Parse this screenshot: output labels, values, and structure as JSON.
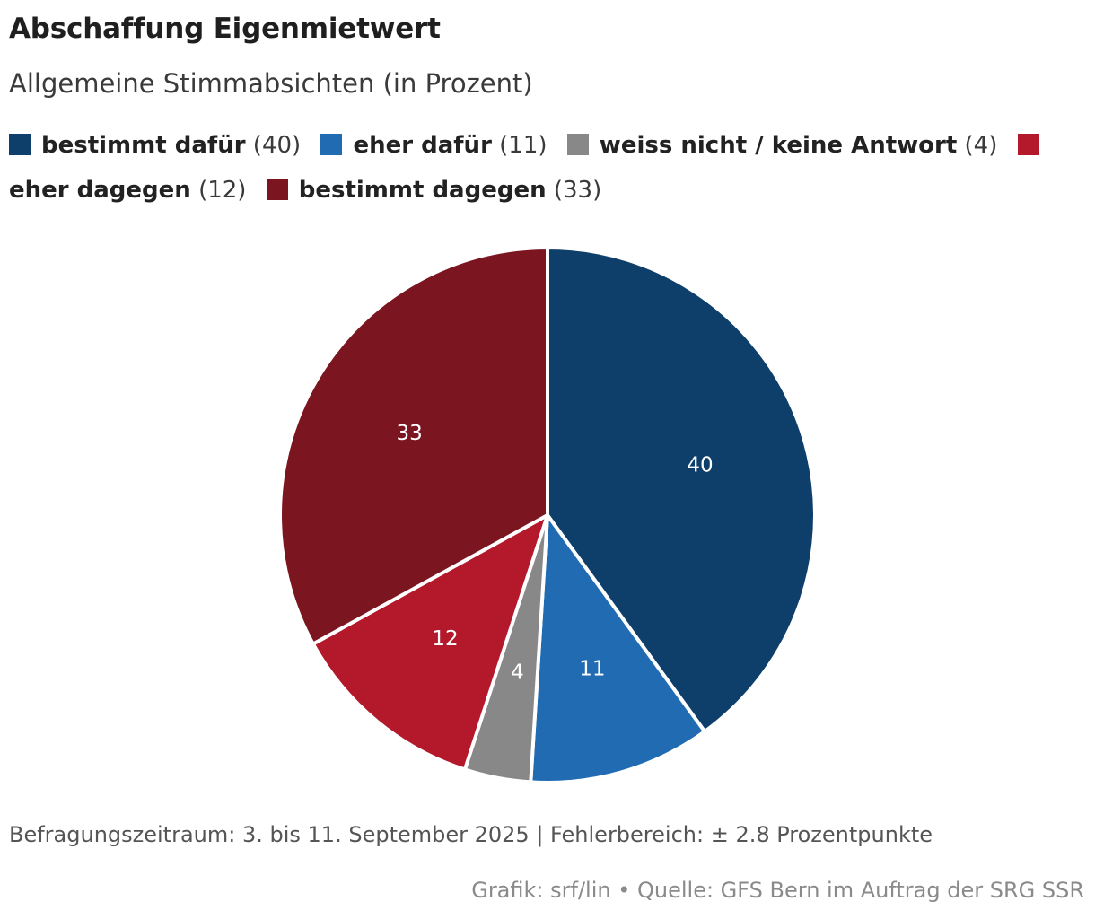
{
  "chart_data": {
    "type": "pie",
    "title": "Abschaffung Eigenmietwert",
    "subtitle": "Allgemeine Stimmabsichten (in Prozent)",
    "categories": [
      "bestimmt dafür",
      "eher dafür",
      "weiss nicht / keine Antwort",
      "eher dagegen",
      "bestimmt dagegen"
    ],
    "values": [
      40,
      11,
      4,
      12,
      33
    ],
    "colors": [
      "#0e3f6b",
      "#216bb3",
      "#888888",
      "#b4182b",
      "#7b1520"
    ],
    "legend": [
      {
        "name": "bestimmt dafür",
        "value": "(40)"
      },
      {
        "name": "eher dafür",
        "value": "(11)"
      },
      {
        "name": "weiss nicht / keine Antwort",
        "value": "(4)"
      },
      {
        "name": "eher dagegen",
        "value": "(12)"
      },
      {
        "name": "bestimmt dagegen",
        "value": "(33)"
      }
    ],
    "legend_placement": "top",
    "slice_labels": [
      "40",
      "11",
      "4",
      "12",
      "33"
    ]
  },
  "footer": {
    "note": "Befragungszeitraum: 3. bis 11. September 2025 | Fehlerbereich: ± 2.8 Prozentpunkte",
    "credit": "Grafik: srf/lin • Quelle: GFS Bern im Auftrag der SRG SSR"
  }
}
